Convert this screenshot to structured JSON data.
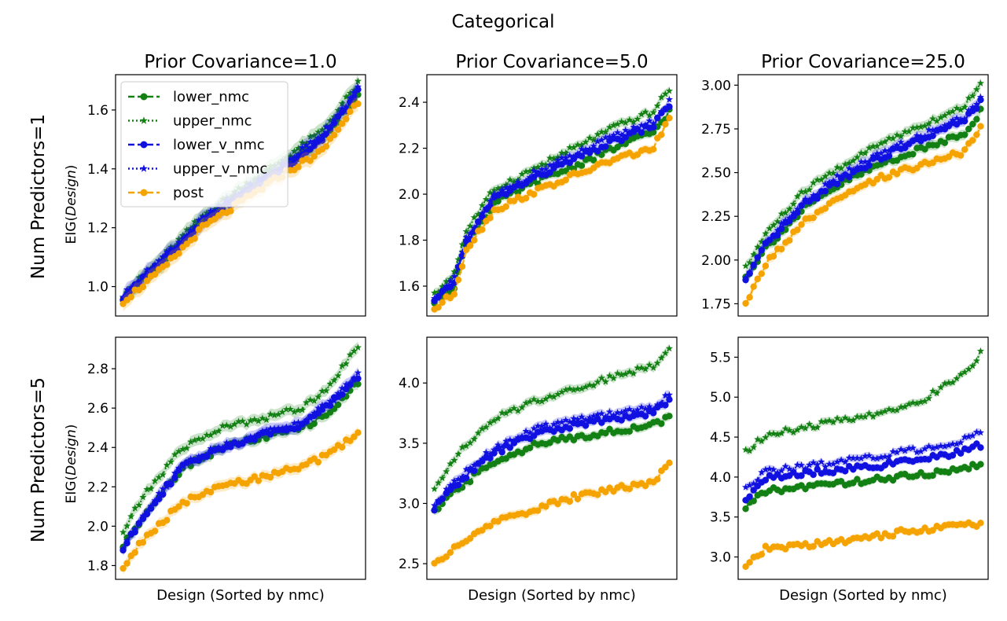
{
  "figure": {
    "suptitle": "Categorical",
    "row_labels": [
      "Num Predictors=1",
      "Num Predictors=5"
    ],
    "ylabel_prefix": "EIG(",
    "ylabel_italic": "Design",
    "ylabel_suffix": ")",
    "xlabel": "Design (Sorted by nmc)",
    "legend": [
      {
        "name": "lower_nmc",
        "color": "#138013",
        "dash": "8,4",
        "marker": "circle"
      },
      {
        "name": "upper_nmc",
        "color": "#138013",
        "dash": "2,3",
        "marker": "star"
      },
      {
        "name": "lower_v_nmc",
        "color": "#1010e0",
        "dash": "8,4",
        "marker": "circle"
      },
      {
        "name": "upper_v_nmc",
        "color": "#1010e0",
        "dash": "2,3",
        "marker": "star"
      },
      {
        "name": "post",
        "color": "#f5a300",
        "dash": "8,4",
        "marker": "circle"
      }
    ]
  },
  "chart_data": [
    {
      "type": "line",
      "title": "Prior Covariance=1.0",
      "row": 0,
      "col": 0,
      "ylim": [
        0.9,
        1.72
      ],
      "yticks": [
        "1.0",
        "1.2",
        "1.4",
        "1.6"
      ],
      "ytick_values": [
        1.0,
        1.2,
        1.4,
        1.6
      ],
      "n_points": 60,
      "band": 0.025,
      "series": [
        {
          "name": "lower_nmc",
          "x": [
            0,
            10,
            20,
            30,
            40,
            50,
            59
          ],
          "y": [
            0.96,
            1.08,
            1.22,
            1.32,
            1.41,
            1.5,
            1.65
          ]
        },
        {
          "name": "upper_nmc",
          "x": [
            0,
            10,
            20,
            30,
            40,
            50,
            59
          ],
          "y": [
            0.97,
            1.1,
            1.24,
            1.34,
            1.43,
            1.53,
            1.69
          ]
        },
        {
          "name": "lower_v_nmc",
          "x": [
            0,
            10,
            20,
            30,
            40,
            50,
            59
          ],
          "y": [
            0.96,
            1.09,
            1.22,
            1.31,
            1.4,
            1.5,
            1.66
          ]
        },
        {
          "name": "upper_v_nmc",
          "x": [
            0,
            10,
            20,
            30,
            40,
            50,
            59
          ],
          "y": [
            0.97,
            1.1,
            1.23,
            1.32,
            1.41,
            1.52,
            1.67
          ]
        },
        {
          "name": "post",
          "x": [
            0,
            10,
            20,
            30,
            40,
            50,
            59
          ],
          "y": [
            0.95,
            1.06,
            1.2,
            1.29,
            1.38,
            1.46,
            1.63
          ]
        }
      ]
    },
    {
      "type": "line",
      "title": "Prior Covariance=5.0",
      "row": 0,
      "col": 1,
      "ylim": [
        1.47,
        2.52
      ],
      "yticks": [
        "1.6",
        "1.8",
        "2.0",
        "2.2",
        "2.4"
      ],
      "ytick_values": [
        1.6,
        1.8,
        2.0,
        2.2,
        2.4
      ],
      "n_points": 60,
      "band": 0.02,
      "series": [
        {
          "name": "lower_nmc",
          "x": [
            0,
            5,
            8,
            15,
            25,
            35,
            45,
            55,
            59
          ],
          "y": [
            1.53,
            1.6,
            1.78,
            1.96,
            2.05,
            2.12,
            2.2,
            2.27,
            2.36
          ]
        },
        {
          "name": "upper_nmc",
          "x": [
            0,
            5,
            8,
            15,
            25,
            35,
            45,
            55,
            59
          ],
          "y": [
            1.56,
            1.66,
            1.84,
            2.02,
            2.11,
            2.2,
            2.29,
            2.36,
            2.46
          ]
        },
        {
          "name": "lower_v_nmc",
          "x": [
            0,
            5,
            8,
            15,
            25,
            35,
            45,
            55,
            59
          ],
          "y": [
            1.53,
            1.62,
            1.79,
            1.98,
            2.07,
            2.15,
            2.23,
            2.3,
            2.39
          ]
        },
        {
          "name": "upper_v_nmc",
          "x": [
            0,
            5,
            8,
            15,
            25,
            35,
            45,
            55,
            59
          ],
          "y": [
            1.54,
            1.63,
            1.8,
            1.99,
            2.09,
            2.17,
            2.25,
            2.32,
            2.4
          ]
        },
        {
          "name": "post",
          "x": [
            0,
            5,
            8,
            15,
            25,
            35,
            45,
            55,
            59
          ],
          "y": [
            1.5,
            1.57,
            1.76,
            1.93,
            2.01,
            2.08,
            2.15,
            2.2,
            2.33
          ]
        }
      ]
    },
    {
      "type": "line",
      "title": "Prior Covariance=25.0",
      "row": 0,
      "col": 2,
      "ylim": [
        1.68,
        3.06
      ],
      "yticks": [
        "1.75",
        "2.00",
        "2.25",
        "2.50",
        "2.75",
        "3.00"
      ],
      "ytick_values": [
        1.75,
        2.0,
        2.25,
        2.5,
        2.75,
        3.0
      ],
      "n_points": 60,
      "band": 0.03,
      "series": [
        {
          "name": "lower_nmc",
          "x": [
            0,
            5,
            15,
            25,
            35,
            45,
            55,
            59
          ],
          "y": [
            1.9,
            2.07,
            2.3,
            2.45,
            2.56,
            2.64,
            2.73,
            2.85
          ]
        },
        {
          "name": "upper_nmc",
          "x": [
            0,
            5,
            15,
            25,
            35,
            45,
            55,
            59
          ],
          "y": [
            1.95,
            2.15,
            2.4,
            2.55,
            2.68,
            2.78,
            2.88,
            3.02
          ]
        },
        {
          "name": "lower_v_nmc",
          "x": [
            0,
            5,
            15,
            25,
            35,
            45,
            55,
            59
          ],
          "y": [
            1.88,
            2.08,
            2.32,
            2.48,
            2.6,
            2.7,
            2.8,
            2.9
          ]
        },
        {
          "name": "upper_v_nmc",
          "x": [
            0,
            5,
            15,
            25,
            35,
            45,
            55,
            59
          ],
          "y": [
            1.89,
            2.1,
            2.34,
            2.5,
            2.62,
            2.72,
            2.82,
            2.92
          ]
        },
        {
          "name": "post",
          "x": [
            0,
            5,
            15,
            25,
            35,
            45,
            55,
            59
          ],
          "y": [
            1.74,
            1.98,
            2.22,
            2.37,
            2.48,
            2.55,
            2.62,
            2.75
          ]
        }
      ]
    },
    {
      "type": "line",
      "title": "",
      "row": 1,
      "col": 0,
      "ylim": [
        1.73,
        2.96
      ],
      "yticks": [
        "1.8",
        "2.0",
        "2.2",
        "2.4",
        "2.6",
        "2.8"
      ],
      "ytick_values": [
        1.8,
        2.0,
        2.2,
        2.4,
        2.6,
        2.8
      ],
      "n_points": 60,
      "band": 0.03,
      "series": [
        {
          "name": "lower_nmc",
          "x": [
            0,
            5,
            15,
            25,
            35,
            45,
            52,
            59
          ],
          "y": [
            1.9,
            2.05,
            2.3,
            2.4,
            2.45,
            2.5,
            2.58,
            2.73
          ]
        },
        {
          "name": "upper_nmc",
          "x": [
            0,
            5,
            15,
            25,
            35,
            45,
            52,
            59
          ],
          "y": [
            1.97,
            2.15,
            2.4,
            2.5,
            2.55,
            2.6,
            2.72,
            2.92
          ]
        },
        {
          "name": "lower_v_nmc",
          "x": [
            0,
            5,
            15,
            25,
            35,
            45,
            52,
            59
          ],
          "y": [
            1.88,
            2.05,
            2.3,
            2.4,
            2.46,
            2.52,
            2.62,
            2.76
          ]
        },
        {
          "name": "upper_v_nmc",
          "x": [
            0,
            5,
            15,
            25,
            35,
            45,
            52,
            59
          ],
          "y": [
            1.89,
            2.06,
            2.31,
            2.41,
            2.47,
            2.53,
            2.63,
            2.78
          ]
        },
        {
          "name": "post",
          "x": [
            0,
            5,
            15,
            25,
            35,
            45,
            52,
            59
          ],
          "y": [
            1.79,
            1.93,
            2.12,
            2.2,
            2.25,
            2.3,
            2.37,
            2.47
          ]
        }
      ]
    },
    {
      "type": "line",
      "title": "",
      "row": 1,
      "col": 1,
      "ylim": [
        2.37,
        4.38
      ],
      "yticks": [
        "2.5",
        "3.0",
        "3.5",
        "4.0"
      ],
      "ytick_values": [
        2.5,
        3.0,
        3.5,
        4.0
      ],
      "n_points": 60,
      "band": 0.04,
      "series": [
        {
          "name": "lower_nmc",
          "x": [
            0,
            5,
            15,
            25,
            35,
            45,
            55,
            59
          ],
          "y": [
            2.92,
            3.1,
            3.35,
            3.48,
            3.55,
            3.6,
            3.65,
            3.72
          ]
        },
        {
          "name": "upper_nmc",
          "x": [
            0,
            5,
            15,
            25,
            35,
            45,
            55,
            59
          ],
          "y": [
            3.13,
            3.38,
            3.7,
            3.85,
            3.95,
            4.05,
            4.15,
            4.28
          ]
        },
        {
          "name": "lower_v_nmc",
          "x": [
            0,
            5,
            15,
            25,
            35,
            45,
            55,
            59
          ],
          "y": [
            2.95,
            3.15,
            3.42,
            3.57,
            3.65,
            3.7,
            3.76,
            3.85
          ]
        },
        {
          "name": "upper_v_nmc",
          "x": [
            0,
            5,
            15,
            25,
            35,
            45,
            55,
            59
          ],
          "y": [
            2.97,
            3.18,
            3.46,
            3.61,
            3.7,
            3.75,
            3.8,
            3.9
          ]
        },
        {
          "name": "post",
          "x": [
            0,
            5,
            15,
            25,
            35,
            45,
            55,
            59
          ],
          "y": [
            2.5,
            2.62,
            2.85,
            2.95,
            3.05,
            3.12,
            3.18,
            3.33
          ]
        }
      ]
    },
    {
      "type": "line",
      "title": "",
      "row": 1,
      "col": 2,
      "ylim": [
        2.72,
        5.75
      ],
      "yticks": [
        "3.0",
        "3.5",
        "4.0",
        "4.5",
        "5.0",
        "5.5"
      ],
      "ytick_values": [
        3.0,
        3.5,
        4.0,
        4.5,
        5.0,
        5.5
      ],
      "n_points": 60,
      "band": 0.05,
      "series": [
        {
          "name": "lower_nmc",
          "x": [
            0,
            5,
            15,
            25,
            35,
            45,
            55,
            59
          ],
          "y": [
            3.62,
            3.82,
            3.88,
            3.93,
            3.98,
            4.03,
            4.12,
            4.17
          ]
        },
        {
          "name": "upper_nmc",
          "x": [
            0,
            5,
            15,
            25,
            35,
            45,
            55,
            59
          ],
          "y": [
            4.32,
            4.52,
            4.62,
            4.72,
            4.82,
            4.98,
            5.3,
            5.55
          ]
        },
        {
          "name": "lower_v_nmc",
          "x": [
            0,
            5,
            15,
            25,
            35,
            45,
            55,
            59
          ],
          "y": [
            3.73,
            3.98,
            4.05,
            4.1,
            4.15,
            4.22,
            4.33,
            4.4
          ]
        },
        {
          "name": "upper_v_nmc",
          "x": [
            0,
            5,
            15,
            25,
            35,
            45,
            55,
            59
          ],
          "y": [
            3.85,
            4.07,
            4.13,
            4.2,
            4.28,
            4.36,
            4.47,
            4.55
          ]
        },
        {
          "name": "post",
          "x": [
            0,
            5,
            15,
            25,
            35,
            45,
            55,
            59
          ],
          "y": [
            2.87,
            3.1,
            3.15,
            3.2,
            3.28,
            3.35,
            3.4,
            3.42
          ]
        }
      ]
    }
  ]
}
